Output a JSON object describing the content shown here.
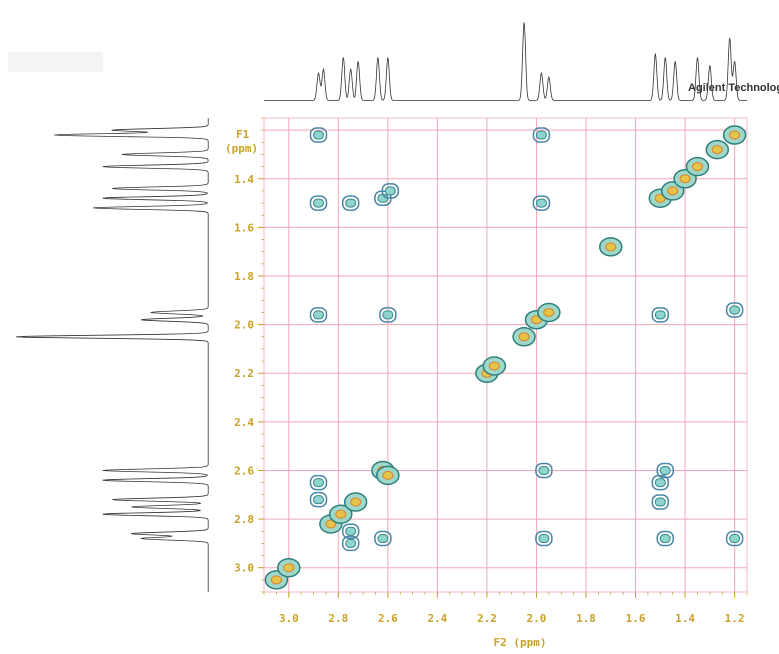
{
  "chart_data": {
    "type": "heatmap",
    "subtype": "2D NMR COSY contour plot",
    "x_axis": {
      "label": "F2 (ppm)",
      "range": [
        3.1,
        1.15
      ],
      "reversed": true,
      "ticks": [
        "3.0",
        "2.8",
        "2.6",
        "2.4",
        "2.2",
        "2.0",
        "1.8",
        "1.6",
        "1.4",
        "1.2"
      ]
    },
    "y_axis": {
      "label_lines": [
        "F1",
        "(ppm)"
      ],
      "range": [
        1.15,
        3.1
      ],
      "ticks": [
        "1.4",
        "1.6",
        "1.8",
        "2.0",
        "2.2",
        "2.4",
        "2.6",
        "2.8",
        "3.0"
      ]
    },
    "grid": true,
    "brand": "Agilent Technologies",
    "diagonal_peaks": [
      {
        "x": 3.05,
        "y": 3.05
      },
      {
        "x": 3.0,
        "y": 3.0
      },
      {
        "x": 2.83,
        "y": 2.82
      },
      {
        "x": 2.79,
        "y": 2.78
      },
      {
        "x": 2.73,
        "y": 2.73
      },
      {
        "x": 2.62,
        "y": 2.6
      },
      {
        "x": 2.6,
        "y": 2.62
      },
      {
        "x": 2.2,
        "y": 2.2
      },
      {
        "x": 2.17,
        "y": 2.17
      },
      {
        "x": 2.05,
        "y": 2.05
      },
      {
        "x": 2.0,
        "y": 1.98
      },
      {
        "x": 1.95,
        "y": 1.95
      },
      {
        "x": 1.7,
        "y": 1.68
      },
      {
        "x": 1.5,
        "y": 1.48
      },
      {
        "x": 1.45,
        "y": 1.45
      },
      {
        "x": 1.4,
        "y": 1.4
      },
      {
        "x": 1.35,
        "y": 1.35
      },
      {
        "x": 1.27,
        "y": 1.28
      },
      {
        "x": 1.2,
        "y": 1.22
      }
    ],
    "cross_peaks": [
      {
        "x": 2.88,
        "y": 1.22
      },
      {
        "x": 1.98,
        "y": 1.22
      },
      {
        "x": 2.88,
        "y": 1.5
      },
      {
        "x": 2.75,
        "y": 1.5
      },
      {
        "x": 2.62,
        "y": 1.48
      },
      {
        "x": 2.59,
        "y": 1.45
      },
      {
        "x": 1.98,
        "y": 1.5
      },
      {
        "x": 2.88,
        "y": 1.96
      },
      {
        "x": 2.6,
        "y": 1.96
      },
      {
        "x": 1.5,
        "y": 1.96
      },
      {
        "x": 1.2,
        "y": 1.94
      },
      {
        "x": 1.97,
        "y": 2.6
      },
      {
        "x": 1.48,
        "y": 2.6
      },
      {
        "x": 2.88,
        "y": 2.65
      },
      {
        "x": 2.88,
        "y": 2.72
      },
      {
        "x": 2.75,
        "y": 2.85
      },
      {
        "x": 2.75,
        "y": 2.9
      },
      {
        "x": 2.62,
        "y": 2.88
      },
      {
        "x": 1.97,
        "y": 2.88
      },
      {
        "x": 1.5,
        "y": 2.65
      },
      {
        "x": 1.5,
        "y": 2.73
      },
      {
        "x": 1.48,
        "y": 2.88
      },
      {
        "x": 1.2,
        "y": 2.88
      }
    ],
    "projection_peaks": [
      {
        "ppm": 2.88,
        "intensity": 0.35
      },
      {
        "ppm": 2.86,
        "intensity": 0.4
      },
      {
        "ppm": 2.78,
        "intensity": 0.55
      },
      {
        "ppm": 2.75,
        "intensity": 0.4
      },
      {
        "ppm": 2.72,
        "intensity": 0.5
      },
      {
        "ppm": 2.64,
        "intensity": 0.55
      },
      {
        "ppm": 2.6,
        "intensity": 0.55
      },
      {
        "ppm": 2.05,
        "intensity": 1.0
      },
      {
        "ppm": 1.98,
        "intensity": 0.35
      },
      {
        "ppm": 1.95,
        "intensity": 0.3
      },
      {
        "ppm": 1.52,
        "intensity": 0.6
      },
      {
        "ppm": 1.48,
        "intensity": 0.55
      },
      {
        "ppm": 1.44,
        "intensity": 0.5
      },
      {
        "ppm": 1.35,
        "intensity": 0.55
      },
      {
        "ppm": 1.3,
        "intensity": 0.45
      },
      {
        "ppm": 1.22,
        "intensity": 0.8
      },
      {
        "ppm": 1.2,
        "intensity": 0.5
      }
    ]
  }
}
